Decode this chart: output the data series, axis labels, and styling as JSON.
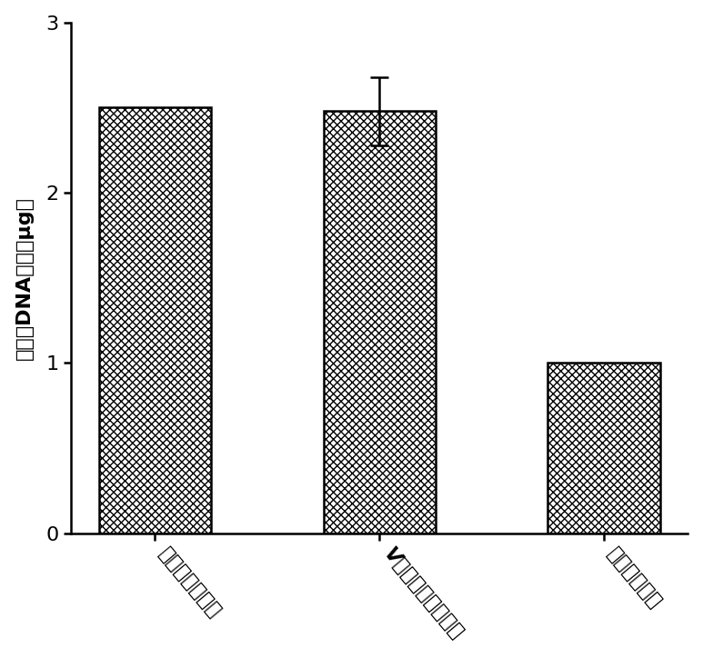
{
  "categories": [
    "本试剂盒溶胶液",
    "V公司试剂盒溶胶液",
    "某专利溶胶液"
  ],
  "values": [
    2.5,
    2.48,
    1.0
  ],
  "errors": [
    0.0,
    0.2,
    0.03
  ],
  "ylim": [
    0,
    3
  ],
  "yticks": [
    0,
    1,
    2,
    3
  ],
  "ylabel": "回收后DNA总量（µg）",
  "bar_edgecolor": "#000000",
  "bar_width": 0.5,
  "background_color": "#ffffff",
  "figsize": [
    7.73,
    7.24
  ],
  "dpi": 100,
  "spine_linewidth": 1.8,
  "tick_fontsize": 16,
  "ylabel_fontsize": 16
}
